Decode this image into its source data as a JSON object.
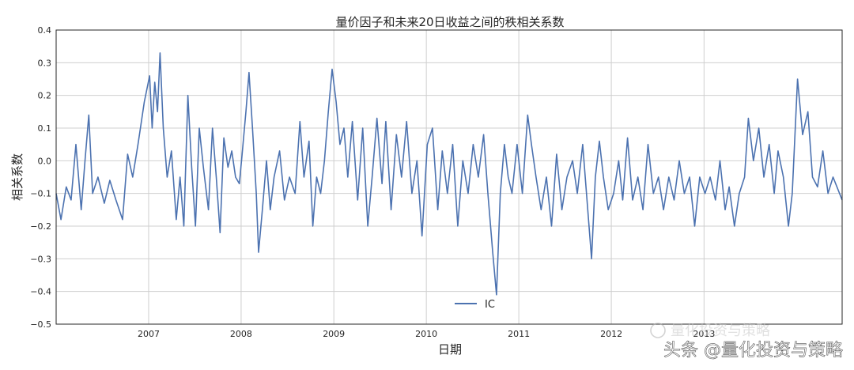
{
  "chart_data": {
    "type": "line",
    "title": "量价因子和未来20日收益之间的秩相关系数",
    "xlabel": "日期",
    "ylabel": "相关系数",
    "x_range": [
      "2006-01-01",
      "2014-06-30"
    ],
    "ylim": [
      -0.5,
      0.4
    ],
    "y_ticks": [
      -0.5,
      -0.4,
      -0.3,
      -0.2,
      -0.1,
      0.0,
      0.1,
      0.2,
      0.3,
      0.4
    ],
    "y_tick_labels": [
      "−0.5",
      "−0.4",
      "−0.3",
      "−0.2",
      "−0.1",
      "0.0",
      "0.1",
      "0.2",
      "0.3",
      "0.4"
    ],
    "x_ticks": [
      "2007",
      "2008",
      "2009",
      "2010",
      "2011",
      "2012",
      "2013"
    ],
    "grid": true,
    "legend": "bottom-center",
    "line_color": "#4c72b0",
    "series": [
      {
        "name": "IC",
        "points": [
          [
            "2006-01-01",
            -0.1
          ],
          [
            "2006-01-20",
            -0.18
          ],
          [
            "2006-02-10",
            -0.08
          ],
          [
            "2006-03-01",
            -0.12
          ],
          [
            "2006-03-20",
            0.05
          ],
          [
            "2006-04-10",
            -0.15
          ],
          [
            "2006-04-25",
            0.0
          ],
          [
            "2006-05-10",
            0.14
          ],
          [
            "2006-05-25",
            -0.1
          ],
          [
            "2006-06-15",
            -0.05
          ],
          [
            "2006-07-10",
            -0.13
          ],
          [
            "2006-08-01",
            -0.06
          ],
          [
            "2006-08-25",
            -0.12
          ],
          [
            "2006-09-20",
            -0.18
          ],
          [
            "2006-10-10",
            0.02
          ],
          [
            "2006-10-30",
            -0.05
          ],
          [
            "2006-11-20",
            0.05
          ],
          [
            "2006-12-15",
            0.18
          ],
          [
            "2007-01-05",
            0.26
          ],
          [
            "2007-01-15",
            0.1
          ],
          [
            "2007-01-25",
            0.24
          ],
          [
            "2007-02-05",
            0.15
          ],
          [
            "2007-02-15",
            0.33
          ],
          [
            "2007-02-28",
            0.1
          ],
          [
            "2007-03-15",
            -0.05
          ],
          [
            "2007-04-01",
            0.03
          ],
          [
            "2007-04-20",
            -0.18
          ],
          [
            "2007-05-05",
            -0.05
          ],
          [
            "2007-05-20",
            -0.2
          ],
          [
            "2007-06-05",
            0.2
          ],
          [
            "2007-06-20",
            -0.02
          ],
          [
            "2007-07-05",
            -0.2
          ],
          [
            "2007-07-20",
            0.1
          ],
          [
            "2007-08-05",
            -0.02
          ],
          [
            "2007-08-25",
            -0.15
          ],
          [
            "2007-09-10",
            0.1
          ],
          [
            "2007-09-25",
            -0.05
          ],
          [
            "2007-10-10",
            -0.22
          ],
          [
            "2007-10-25",
            0.07
          ],
          [
            "2007-11-10",
            -0.02
          ],
          [
            "2007-11-25",
            0.03
          ],
          [
            "2007-12-10",
            -0.05
          ],
          [
            "2007-12-25",
            -0.07
          ],
          [
            "2008-01-05",
            0.02
          ],
          [
            "2008-01-20",
            0.15
          ],
          [
            "2008-02-01",
            0.27
          ],
          [
            "2008-02-15",
            0.1
          ],
          [
            "2008-03-01",
            -0.1
          ],
          [
            "2008-03-10",
            -0.28
          ],
          [
            "2008-03-25",
            -0.15
          ],
          [
            "2008-04-10",
            0.0
          ],
          [
            "2008-04-25",
            -0.15
          ],
          [
            "2008-05-10",
            -0.05
          ],
          [
            "2008-06-01",
            0.03
          ],
          [
            "2008-06-20",
            -0.12
          ],
          [
            "2008-07-10",
            -0.05
          ],
          [
            "2008-08-01",
            -0.1
          ],
          [
            "2008-08-20",
            0.12
          ],
          [
            "2008-09-05",
            -0.05
          ],
          [
            "2008-09-25",
            0.06
          ],
          [
            "2008-10-10",
            -0.2
          ],
          [
            "2008-10-25",
            -0.05
          ],
          [
            "2008-11-10",
            -0.1
          ],
          [
            "2008-11-25",
            0.0
          ],
          [
            "2008-12-10",
            0.15
          ],
          [
            "2008-12-25",
            0.28
          ],
          [
            "2009-01-10",
            0.18
          ],
          [
            "2009-01-25",
            0.05
          ],
          [
            "2009-02-10",
            0.1
          ],
          [
            "2009-02-25",
            -0.05
          ],
          [
            "2009-03-15",
            0.12
          ],
          [
            "2009-04-05",
            -0.12
          ],
          [
            "2009-04-25",
            0.1
          ],
          [
            "2009-05-15",
            -0.2
          ],
          [
            "2009-06-01",
            -0.05
          ],
          [
            "2009-06-20",
            0.13
          ],
          [
            "2009-07-10",
            -0.07
          ],
          [
            "2009-07-25",
            0.12
          ],
          [
            "2009-08-15",
            -0.15
          ],
          [
            "2009-09-05",
            0.08
          ],
          [
            "2009-09-25",
            -0.05
          ],
          [
            "2009-10-15",
            0.12
          ],
          [
            "2009-11-05",
            -0.1
          ],
          [
            "2009-11-25",
            0.0
          ],
          [
            "2009-12-15",
            -0.23
          ],
          [
            "2010-01-05",
            0.05
          ],
          [
            "2010-01-25",
            0.1
          ],
          [
            "2010-02-15",
            -0.15
          ],
          [
            "2010-03-05",
            0.03
          ],
          [
            "2010-03-25",
            -0.1
          ],
          [
            "2010-04-15",
            0.05
          ],
          [
            "2010-05-05",
            -0.2
          ],
          [
            "2010-05-25",
            0.0
          ],
          [
            "2010-06-15",
            -0.1
          ],
          [
            "2010-07-05",
            0.05
          ],
          [
            "2010-07-25",
            -0.05
          ],
          [
            "2010-08-15",
            0.08
          ],
          [
            "2010-09-01",
            -0.1
          ],
          [
            "2010-09-20",
            -0.28
          ],
          [
            "2010-10-05",
            -0.41
          ],
          [
            "2010-10-20",
            -0.1
          ],
          [
            "2010-11-05",
            0.05
          ],
          [
            "2010-11-20",
            -0.05
          ],
          [
            "2010-12-05",
            -0.1
          ],
          [
            "2010-12-25",
            0.05
          ],
          [
            "2011-01-15",
            -0.1
          ],
          [
            "2011-02-05",
            0.14
          ],
          [
            "2011-02-20",
            0.05
          ],
          [
            "2011-03-10",
            -0.05
          ],
          [
            "2011-03-30",
            -0.15
          ],
          [
            "2011-04-20",
            -0.05
          ],
          [
            "2011-05-10",
            -0.2
          ],
          [
            "2011-05-30",
            0.02
          ],
          [
            "2011-06-20",
            -0.15
          ],
          [
            "2011-07-10",
            -0.05
          ],
          [
            "2011-08-01",
            0.0
          ],
          [
            "2011-08-20",
            -0.1
          ],
          [
            "2011-09-10",
            0.05
          ],
          [
            "2011-09-30",
            -0.15
          ],
          [
            "2011-10-15",
            -0.3
          ],
          [
            "2011-10-30",
            -0.05
          ],
          [
            "2011-11-15",
            0.06
          ],
          [
            "2011-12-01",
            -0.05
          ],
          [
            "2011-12-20",
            -0.15
          ],
          [
            "2012-01-10",
            -0.1
          ],
          [
            "2012-01-30",
            0.0
          ],
          [
            "2012-02-15",
            -0.12
          ],
          [
            "2012-03-05",
            0.07
          ],
          [
            "2012-03-25",
            -0.12
          ],
          [
            "2012-04-15",
            -0.05
          ],
          [
            "2012-05-05",
            -0.15
          ],
          [
            "2012-05-25",
            0.05
          ],
          [
            "2012-06-15",
            -0.1
          ],
          [
            "2012-07-05",
            -0.05
          ],
          [
            "2012-07-25",
            -0.15
          ],
          [
            "2012-08-15",
            -0.05
          ],
          [
            "2012-09-05",
            -0.12
          ],
          [
            "2012-09-25",
            0.0
          ],
          [
            "2012-10-15",
            -0.1
          ],
          [
            "2012-11-05",
            -0.05
          ],
          [
            "2012-11-25",
            -0.2
          ],
          [
            "2012-12-15",
            -0.05
          ],
          [
            "2013-01-05",
            -0.1
          ],
          [
            "2013-01-25",
            -0.05
          ],
          [
            "2013-02-15",
            -0.12
          ],
          [
            "2013-03-05",
            0.0
          ],
          [
            "2013-03-25",
            -0.15
          ],
          [
            "2013-04-10",
            -0.08
          ],
          [
            "2013-05-01",
            -0.2
          ],
          [
            "2013-05-20",
            -0.1
          ],
          [
            "2013-06-10",
            -0.05
          ],
          [
            "2013-06-25",
            0.13
          ],
          [
            "2013-07-15",
            0.0
          ],
          [
            "2013-08-05",
            0.1
          ],
          [
            "2013-08-25",
            -0.05
          ],
          [
            "2013-09-15",
            0.05
          ],
          [
            "2013-10-05",
            -0.1
          ],
          [
            "2013-10-20",
            0.03
          ],
          [
            "2013-11-10",
            -0.05
          ],
          [
            "2013-11-30",
            -0.2
          ],
          [
            "2013-12-15",
            -0.1
          ],
          [
            "2014-01-05",
            0.25
          ],
          [
            "2014-01-25",
            0.08
          ],
          [
            "2014-02-15",
            0.15
          ],
          [
            "2014-03-05",
            -0.05
          ],
          [
            "2014-03-25",
            -0.08
          ],
          [
            "2014-04-15",
            0.03
          ],
          [
            "2014-05-05",
            -0.1
          ],
          [
            "2014-05-25",
            -0.05
          ],
          [
            "2014-06-30",
            -0.12
          ]
        ]
      }
    ]
  },
  "watermark": {
    "brand_line": "量化投资与策略",
    "account_line": "头条 @量化投资与策略"
  }
}
